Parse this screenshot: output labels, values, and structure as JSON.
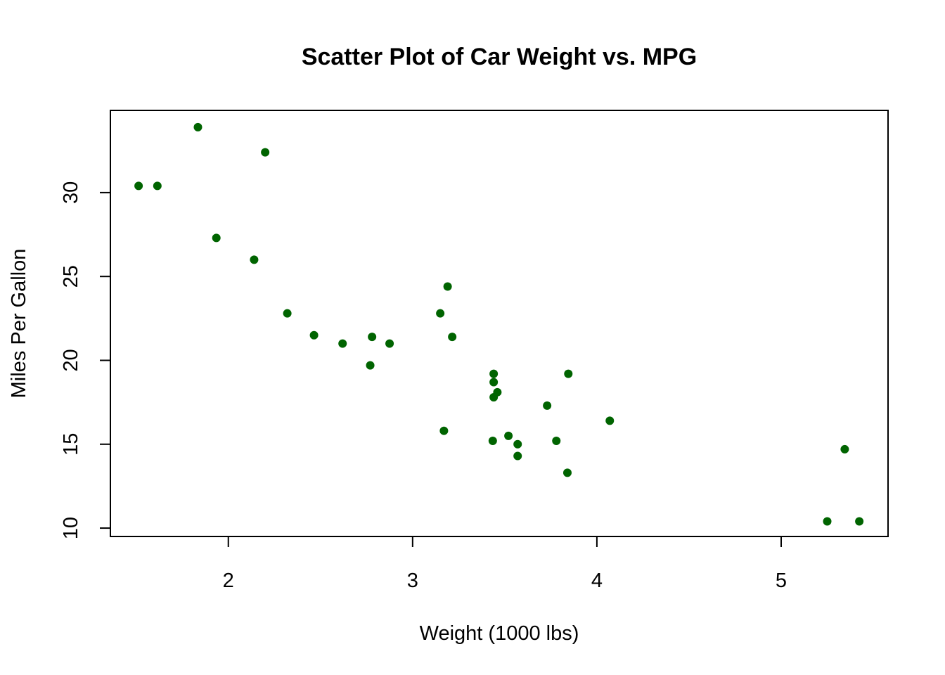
{
  "chart_data": {
    "type": "scatter",
    "title": "Scatter Plot of Car Weight vs. MPG",
    "xlabel": "Weight (1000 lbs)",
    "ylabel": "Miles Per Gallon",
    "xlim": [
      1.36,
      5.58
    ],
    "ylim": [
      9.5,
      34.9
    ],
    "x_ticks": [
      2,
      3,
      4,
      5
    ],
    "x_tick_labels": [
      "2",
      "3",
      "4",
      "5"
    ],
    "y_ticks": [
      10,
      15,
      20,
      25,
      30
    ],
    "y_tick_labels": [
      "10",
      "15",
      "20",
      "25",
      "30"
    ],
    "grid": false,
    "legend": "none",
    "point_color": "#006400",
    "points": [
      {
        "x": 1.513,
        "y": 30.4
      },
      {
        "x": 1.615,
        "y": 30.4
      },
      {
        "x": 1.835,
        "y": 33.9
      },
      {
        "x": 1.935,
        "y": 27.3
      },
      {
        "x": 2.14,
        "y": 26.0
      },
      {
        "x": 2.2,
        "y": 32.4
      },
      {
        "x": 2.32,
        "y": 22.8
      },
      {
        "x": 2.465,
        "y": 21.5
      },
      {
        "x": 2.62,
        "y": 21.0
      },
      {
        "x": 2.77,
        "y": 19.7
      },
      {
        "x": 2.78,
        "y": 21.4
      },
      {
        "x": 2.875,
        "y": 21.0
      },
      {
        "x": 3.15,
        "y": 22.8
      },
      {
        "x": 3.17,
        "y": 15.8
      },
      {
        "x": 3.19,
        "y": 24.4
      },
      {
        "x": 3.215,
        "y": 21.4
      },
      {
        "x": 3.435,
        "y": 15.2
      },
      {
        "x": 3.44,
        "y": 17.8
      },
      {
        "x": 3.44,
        "y": 18.7
      },
      {
        "x": 3.44,
        "y": 19.2
      },
      {
        "x": 3.46,
        "y": 18.1
      },
      {
        "x": 3.52,
        "y": 15.5
      },
      {
        "x": 3.57,
        "y": 14.3
      },
      {
        "x": 3.57,
        "y": 15.0
      },
      {
        "x": 3.73,
        "y": 17.3
      },
      {
        "x": 3.78,
        "y": 15.2
      },
      {
        "x": 3.84,
        "y": 13.3
      },
      {
        "x": 3.845,
        "y": 19.2
      },
      {
        "x": 4.07,
        "y": 16.4
      },
      {
        "x": 5.25,
        "y": 10.4
      },
      {
        "x": 5.345,
        "y": 14.7
      },
      {
        "x": 5.424,
        "y": 10.4
      }
    ]
  }
}
